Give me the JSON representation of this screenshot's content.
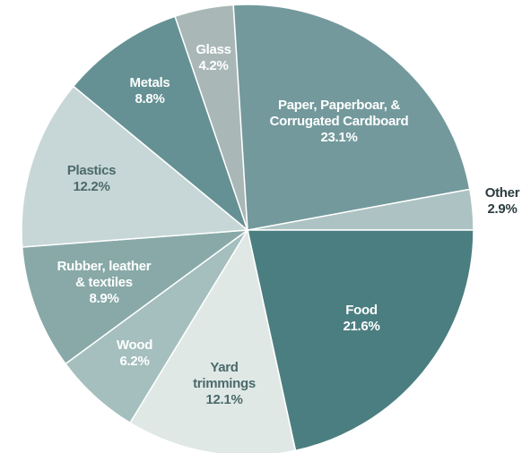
{
  "chart_data": {
    "type": "pie",
    "slices": [
      {
        "name": "Other",
        "label_lines": [
          "Other"
        ],
        "value": 2.9,
        "value_label": "2.9%",
        "color": "#adc2c2",
        "label_color": "#2b3c3f"
      },
      {
        "name": "Food",
        "label_lines": [
          "Food"
        ],
        "value": 21.6,
        "value_label": "21.6%",
        "color": "#4b7e80",
        "label_color": "#ffffff"
      },
      {
        "name": "Yard trimmings",
        "label_lines": [
          "Yard",
          "trimmings"
        ],
        "value": 12.1,
        "value_label": "12.1%",
        "color": "#e0e8e6",
        "label_color": "#4b6a6c"
      },
      {
        "name": "Wood",
        "label_lines": [
          "Wood"
        ],
        "value": 6.2,
        "value_label": "6.2%",
        "color": "#a4bfbd",
        "label_color": "#ffffff"
      },
      {
        "name": "Rubber, leather & textiles",
        "label_lines": [
          "Rubber, leather",
          "& textiles"
        ],
        "value": 8.9,
        "value_label": "8.9%",
        "color": "#88a9a8",
        "label_color": "#ffffff"
      },
      {
        "name": "Plastics",
        "label_lines": [
          "Plastics"
        ],
        "value": 12.2,
        "value_label": "12.2%",
        "color": "#c7d6d6",
        "label_color": "#4b6a6c"
      },
      {
        "name": "Metals",
        "label_lines": [
          "Metals"
        ],
        "value": 8.8,
        "value_label": "8.8%",
        "color": "#659194",
        "label_color": "#ffffff"
      },
      {
        "name": "Glass",
        "label_lines": [
          "Glass"
        ],
        "value": 4.2,
        "value_label": "4.2%",
        "color": "#a9b7b6",
        "label_color": "#ffffff"
      },
      {
        "name": "Paper, Paperboar, & Corrugated Cardboard",
        "label_lines": [
          "Paper, Paperboar, &",
          "Corrugated Cardboard"
        ],
        "value": 23.1,
        "value_label": "23.1%",
        "color": "#73999c",
        "label_color": "#ffffff"
      }
    ]
  }
}
